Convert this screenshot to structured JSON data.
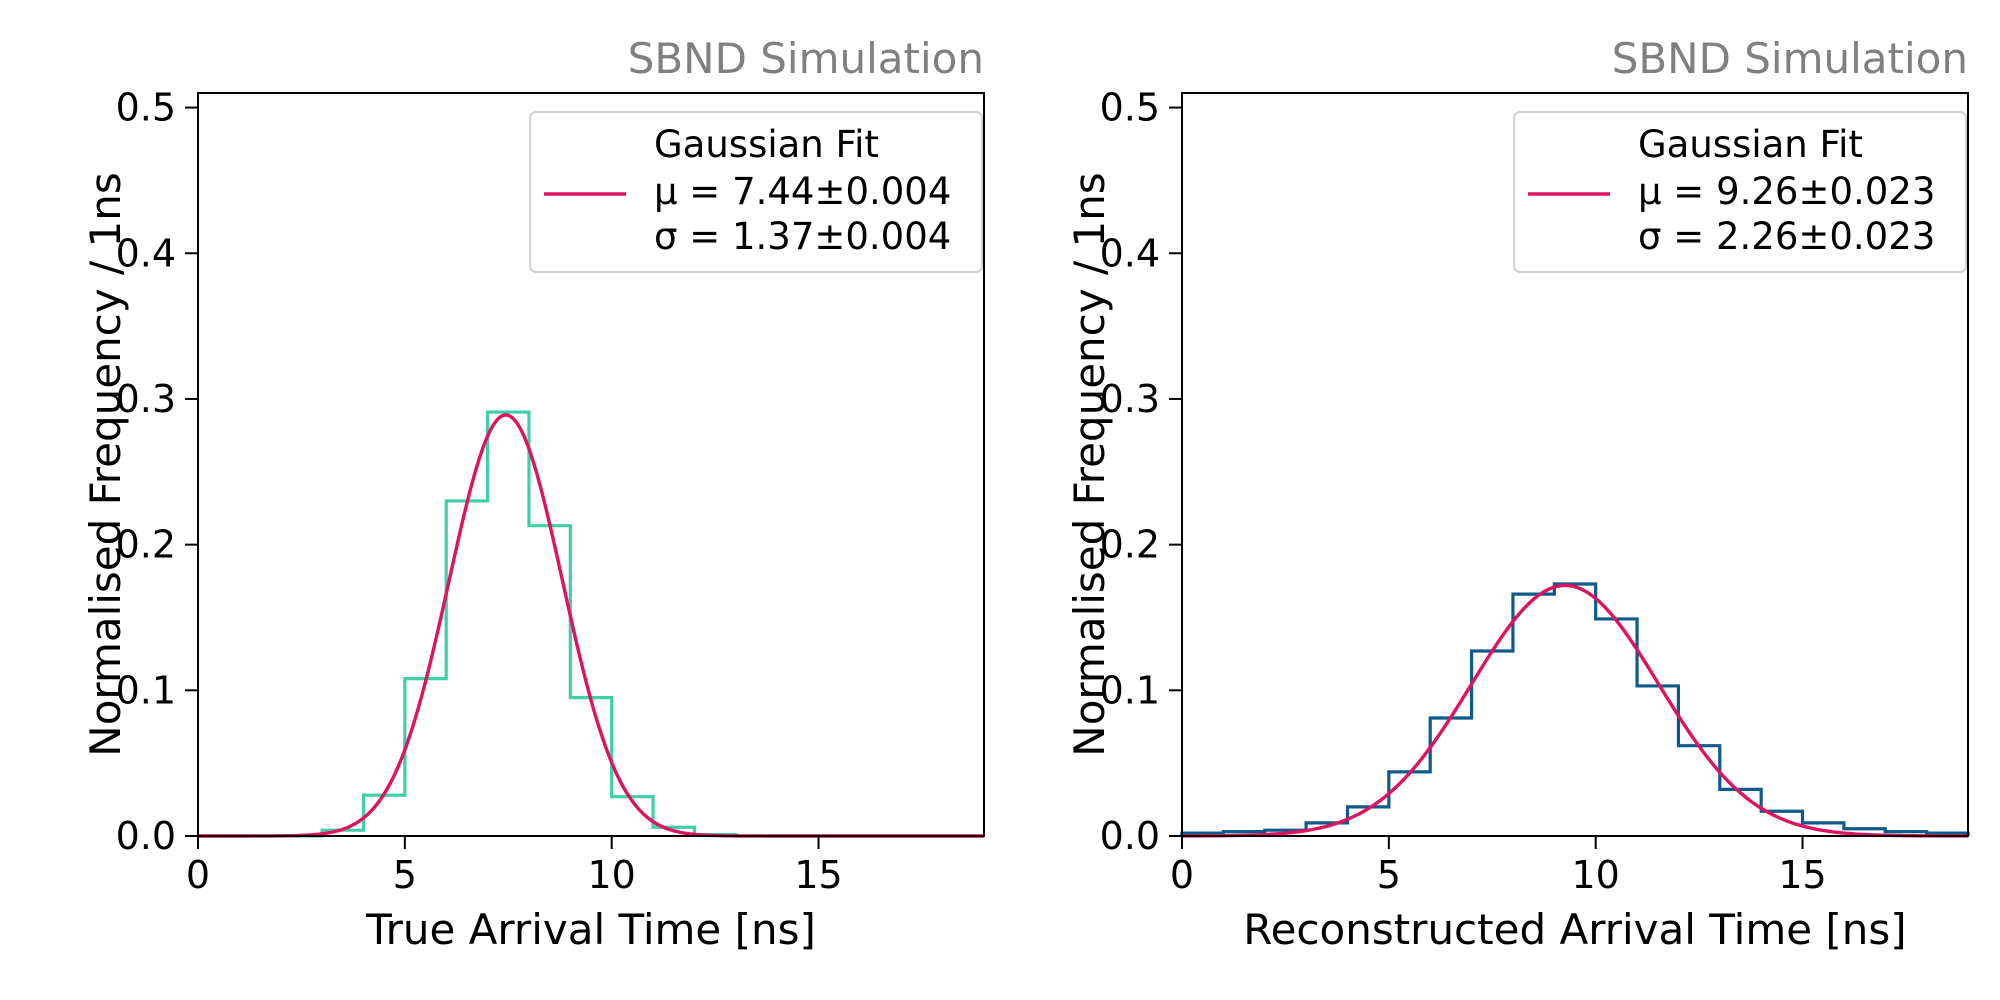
{
  "chart_data": [
    {
      "type": "histogram",
      "watermark": "SBND Simulation",
      "xlabel": "True Arrival Time [ns]",
      "ylabel": "Normalised Frequency / 1ns",
      "xlim": [
        0,
        19
      ],
      "ylim": [
        0,
        0.51
      ],
      "xticks": [
        0,
        5,
        10,
        15
      ],
      "yticks": [
        0.0,
        0.1,
        0.2,
        0.3,
        0.4,
        0.5
      ],
      "ytick_labels": [
        "0.0",
        "0.1",
        "0.2",
        "0.3",
        "0.4",
        "0.5"
      ],
      "grid": false,
      "legend_position": "top-right",
      "histogram": {
        "name": "",
        "color": "#3ecfa8",
        "bin_edges": [
          0,
          1,
          2,
          3,
          4,
          5,
          6,
          7,
          8,
          9,
          10,
          11,
          12,
          13,
          14,
          15,
          16,
          17,
          18,
          19
        ],
        "values": [
          0.0,
          0.0,
          0.0,
          0.004,
          0.028,
          0.108,
          0.23,
          0.291,
          0.213,
          0.095,
          0.027,
          0.006,
          0.001,
          0.0,
          0.0,
          0.0,
          0.0,
          0.0,
          0.0
        ]
      },
      "fit": {
        "legend_title": "Gaussian Fit",
        "mu_label": "μ = 7.44±0.004",
        "sigma_label": "σ = 1.37±0.004",
        "mu": 7.44,
        "sigma": 1.37,
        "amplitude": 0.289,
        "color": "#e0115f"
      }
    },
    {
      "type": "histogram",
      "watermark": "SBND Simulation",
      "xlabel": "Reconstructed Arrival Time [ns]",
      "ylabel": "Normalised Frequency / 1ns",
      "xlim": [
        0,
        19
      ],
      "ylim": [
        0,
        0.51
      ],
      "xticks": [
        0,
        5,
        10,
        15
      ],
      "yticks": [
        0.0,
        0.1,
        0.2,
        0.3,
        0.4,
        0.5
      ],
      "ytick_labels": [
        "0.0",
        "0.1",
        "0.2",
        "0.3",
        "0.4",
        "0.5"
      ],
      "grid": false,
      "legend_position": "top-right",
      "histogram": {
        "name": "",
        "color": "#0e5a8a",
        "bin_edges": [
          0,
          1,
          2,
          3,
          4,
          5,
          6,
          7,
          8,
          9,
          10,
          11,
          12,
          13,
          14,
          15,
          16,
          17,
          18,
          19
        ],
        "values": [
          0.002,
          0.003,
          0.004,
          0.009,
          0.02,
          0.044,
          0.081,
          0.127,
          0.166,
          0.173,
          0.149,
          0.103,
          0.062,
          0.032,
          0.017,
          0.009,
          0.005,
          0.003,
          0.002
        ]
      },
      "fit": {
        "legend_title": "Gaussian Fit",
        "mu_label": "μ = 9.26±0.023",
        "sigma_label": "σ = 2.26±0.023",
        "mu": 9.26,
        "sigma": 2.26,
        "amplitude": 0.172,
        "color": "#e0115f"
      }
    }
  ]
}
